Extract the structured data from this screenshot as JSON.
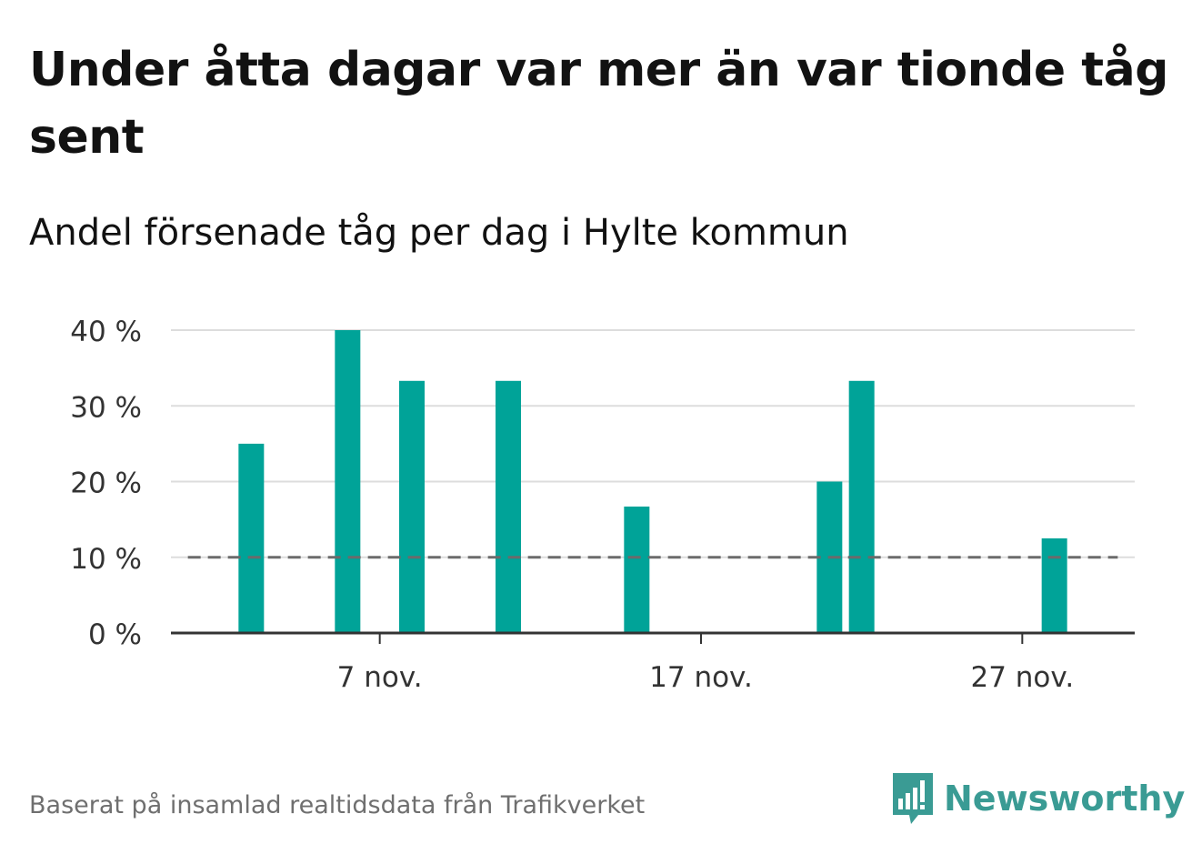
{
  "title": "Under åtta dagar var mer än var tionde tåg sent",
  "subtitle": "Andel försenade tåg per dag i Hylte kommun",
  "source": "Baserat på insamlad realtidsdata från Trafikverket",
  "brand": {
    "name": "Newsworthy",
    "icon": "newsworthy-logo-icon"
  },
  "colors": {
    "bar": "#00a398",
    "reference_line": "#6b6b6b",
    "grid": "#dddddd",
    "axis": "#333333",
    "brand": "#3a9b94"
  },
  "chart_data": {
    "type": "bar",
    "x_tick_labels": [
      "7 nov.",
      "17 nov.",
      "27 nov."
    ],
    "x_tick_values": [
      7,
      17,
      27
    ],
    "xlim": [
      0.5,
      30.5
    ],
    "ylim": [
      0,
      40
    ],
    "y_tick_values": [
      0,
      10,
      20,
      30,
      40
    ],
    "y_tick_labels": [
      "0 %",
      "10 %",
      "20 %",
      "30 %",
      "40 %"
    ],
    "grid": true,
    "reference_line": {
      "value": 10,
      "style": "dashed"
    },
    "x": [
      1,
      2,
      3,
      4,
      5,
      6,
      7,
      8,
      9,
      10,
      11,
      12,
      13,
      14,
      15,
      16,
      17,
      18,
      19,
      20,
      21,
      22,
      23,
      24,
      25,
      26,
      27,
      28,
      29,
      30
    ],
    "values": [
      0,
      0,
      25,
      0,
      0,
      40,
      0,
      33.3,
      0,
      0,
      33.3,
      0,
      0,
      0,
      16.7,
      0,
      0,
      0,
      0,
      0,
      20,
      33.3,
      0,
      0,
      0,
      0,
      0,
      12.5,
      0,
      0
    ],
    "xlabel": "",
    "ylabel": ""
  }
}
